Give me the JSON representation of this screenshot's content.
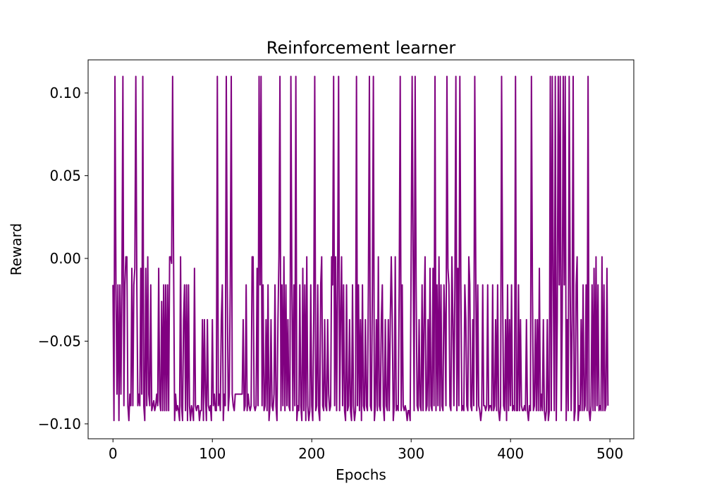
{
  "chart_data": {
    "type": "line",
    "title": "Reinforcement learner",
    "xlabel": "Epochs",
    "ylabel": "Reward",
    "xlim": [
      -25,
      524
    ],
    "ylim": [
      -0.109,
      0.12
    ],
    "xticks": [
      0,
      100,
      200,
      300,
      400,
      500
    ],
    "xtick_labels": [
      "0",
      "100",
      "200",
      "300",
      "400",
      "500"
    ],
    "yticks": [
      -0.1,
      -0.05,
      0.0,
      0.05,
      0.1
    ],
    "ytick_labels": [
      "−0.10",
      "−0.05",
      "0.00",
      "0.05",
      "0.10"
    ],
    "grid": false,
    "legend": "none",
    "series": [
      {
        "color": "#800080",
        "x_start": 0,
        "x_step": 1,
        "values": [
          -0.016,
          -0.098,
          0.11,
          -0.016,
          -0.082,
          -0.016,
          -0.098,
          -0.016,
          -0.082,
          -0.016,
          0.11,
          -0.089,
          -0.016,
          0.001,
          0.001,
          -0.089,
          -0.098,
          -0.082,
          -0.089,
          -0.006,
          -0.089,
          -0.016,
          -0.006,
          0.11,
          -0.016,
          -0.089,
          -0.082,
          -0.089,
          -0.006,
          -0.082,
          0.11,
          -0.089,
          -0.098,
          -0.006,
          -0.089,
          0.001,
          -0.082,
          -0.089,
          -0.016,
          -0.092,
          -0.089,
          -0.086,
          -0.092,
          -0.089,
          -0.082,
          -0.089,
          -0.006,
          -0.086,
          -0.092,
          -0.026,
          -0.092,
          -0.016,
          -0.092,
          -0.016,
          -0.092,
          -0.016,
          -0.092,
          0.001,
          0.001,
          -0.003,
          0.11,
          -0.003,
          -0.098,
          -0.082,
          -0.092,
          -0.089,
          -0.092,
          -0.098,
          0.001,
          -0.089,
          -0.098,
          -0.037,
          -0.016,
          -0.092,
          -0.016,
          -0.098,
          -0.016,
          -0.089,
          -0.098,
          -0.089,
          -0.092,
          -0.098,
          -0.006,
          -0.089,
          -0.092,
          -0.089,
          -0.089,
          -0.098,
          -0.092,
          -0.092,
          -0.037,
          -0.098,
          -0.037,
          -0.082,
          -0.098,
          -0.037,
          -0.089,
          -0.092,
          -0.089,
          -0.098,
          -0.037,
          -0.089,
          -0.082,
          -0.092,
          -0.092,
          0.11,
          -0.089,
          -0.082,
          -0.092,
          -0.037,
          -0.016,
          -0.098,
          -0.082,
          -0.089,
          0.11,
          -0.016,
          -0.092,
          -0.082,
          -0.016,
          0.11,
          -0.082,
          -0.089,
          -0.092,
          -0.082,
          -0.082,
          -0.082,
          -0.082,
          -0.082,
          -0.082,
          -0.082,
          -0.082,
          -0.037,
          -0.092,
          -0.089,
          -0.016,
          -0.092,
          -0.082,
          -0.089,
          -0.092,
          -0.089,
          0.001,
          0.001,
          -0.089,
          -0.092,
          -0.089,
          -0.006,
          -0.089,
          0.11,
          -0.016,
          0.11,
          -0.089,
          -0.016,
          -0.092,
          -0.089,
          -0.037,
          -0.092,
          -0.016,
          -0.098,
          -0.089,
          -0.037,
          -0.089,
          -0.092,
          -0.082,
          -0.016,
          -0.089,
          -0.098,
          -0.037,
          0.001,
          0.11,
          -0.092,
          -0.016,
          -0.089,
          0.001,
          -0.092,
          -0.016,
          -0.089,
          -0.037,
          -0.089,
          -0.092,
          0.11,
          -0.016,
          -0.092,
          -0.016,
          -0.089,
          0.11,
          -0.098,
          -0.089,
          -0.092,
          -0.016,
          -0.089,
          -0.098,
          -0.006,
          -0.092,
          -0.016,
          -0.098,
          0.001,
          -0.089,
          -0.098,
          -0.092,
          -0.016,
          -0.089,
          -0.098,
          -0.037,
          0.11,
          -0.092,
          -0.089,
          -0.016,
          -0.092,
          -0.098,
          -0.016,
          0.001,
          -0.089,
          -0.092,
          -0.037,
          -0.089,
          -0.092,
          -0.037,
          -0.082,
          -0.092,
          -0.089,
          0.001,
          -0.016,
          0.11,
          -0.089,
          0.001,
          -0.092,
          -0.016,
          0.11,
          -0.092,
          -0.037,
          0.001,
          -0.089,
          -0.016,
          -0.092,
          -0.098,
          -0.016,
          -0.092,
          -0.089,
          -0.037,
          -0.092,
          -0.098,
          -0.016,
          -0.089,
          -0.098,
          -0.092,
          0.11,
          -0.089,
          -0.016,
          -0.092,
          -0.037,
          -0.098,
          -0.016,
          -0.089,
          -0.092,
          -0.037,
          -0.089,
          -0.092,
          -0.016,
          0.11,
          -0.089,
          -0.092,
          -0.016,
          0.11,
          -0.098,
          -0.089,
          -0.037,
          -0.092,
          0.001,
          -0.089,
          -0.092,
          -0.037,
          -0.016,
          -0.089,
          -0.098,
          -0.037,
          -0.089,
          -0.092,
          -0.037,
          -0.092,
          -0.037,
          0.001,
          -0.037,
          -0.098,
          -0.089,
          0.001,
          -0.092,
          -0.089,
          -0.092,
          -0.016,
          0.11,
          -0.092,
          -0.016,
          -0.089,
          -0.092,
          -0.089,
          -0.092,
          -0.098,
          -0.092,
          -0.092,
          -0.098,
          0.001,
          0.11,
          0.001,
          -0.092,
          0.11,
          -0.016,
          -0.089,
          -0.092,
          -0.037,
          -0.089,
          -0.092,
          -0.016,
          -0.092,
          -0.037,
          0.001,
          -0.092,
          -0.089,
          -0.037,
          -0.092,
          -0.006,
          -0.089,
          -0.092,
          -0.006,
          -0.089,
          0.11,
          -0.092,
          -0.016,
          -0.089,
          0.001,
          -0.092,
          -0.016,
          -0.089,
          -0.092,
          -0.016,
          -0.037,
          -0.089,
          0.11,
          -0.006,
          -0.016,
          -0.089,
          -0.092,
          0.001,
          -0.037,
          -0.089,
          -0.016,
          0.11,
          -0.092,
          -0.006,
          -0.089,
          0.11,
          -0.016,
          -0.092,
          -0.089,
          -0.092,
          -0.016,
          -0.037,
          -0.089,
          -0.092,
          0.001,
          -0.016,
          -0.089,
          -0.092,
          -0.037,
          -0.089,
          0.11,
          -0.006,
          -0.092,
          -0.016,
          -0.089,
          -0.092,
          -0.098,
          -0.092,
          -0.016,
          -0.089,
          -0.089,
          -0.092,
          -0.089,
          -0.016,
          -0.092,
          -0.089,
          -0.089,
          -0.092,
          -0.016,
          -0.092,
          -0.089,
          -0.037,
          -0.092,
          -0.016,
          -0.092,
          -0.098,
          -0.089,
          0.11,
          -0.016,
          -0.089,
          -0.092,
          -0.037,
          -0.098,
          -0.016,
          -0.092,
          -0.037,
          -0.089,
          -0.016,
          -0.092,
          -0.089,
          -0.092,
          0.11,
          -0.092,
          -0.092,
          -0.016,
          -0.092,
          -0.037,
          -0.089,
          -0.092,
          -0.092,
          -0.089,
          -0.092,
          -0.037,
          -0.092,
          -0.098,
          -0.089,
          -0.092,
          0.11,
          -0.016,
          -0.092,
          -0.089,
          -0.037,
          -0.092,
          -0.037,
          -0.092,
          -0.006,
          -0.092,
          -0.082,
          -0.092,
          -0.037,
          -0.092,
          -0.098,
          -0.092,
          -0.037,
          -0.098,
          -0.092,
          0.11,
          -0.092,
          0.11,
          -0.016,
          -0.092,
          0.11,
          -0.098,
          -0.037,
          0.11,
          -0.016,
          0.11,
          -0.092,
          -0.037,
          0.11,
          -0.016,
          0.11,
          -0.098,
          -0.037,
          -0.092,
          0.11,
          -0.016,
          -0.092,
          -0.037,
          0.11,
          -0.098,
          -0.092,
          -0.016,
          0.001,
          -0.098,
          -0.089,
          -0.092,
          -0.037,
          -0.092,
          -0.016,
          -0.092,
          -0.089,
          -0.016,
          -0.092,
          0.11,
          -0.092,
          -0.098,
          -0.089,
          -0.016,
          -0.092,
          -0.006,
          -0.092,
          0.001,
          -0.089,
          -0.016,
          -0.092,
          -0.089,
          -0.092,
          0.001,
          -0.092,
          -0.016,
          -0.092,
          -0.089,
          -0.006,
          -0.089
        ]
      }
    ]
  }
}
